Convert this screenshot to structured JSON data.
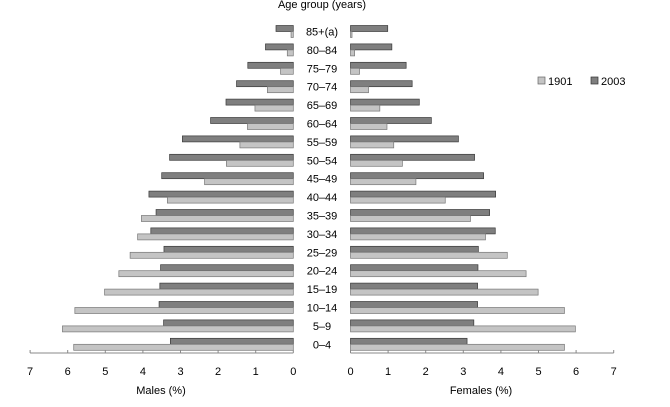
{
  "chart_data": {
    "type": "bar",
    "orientation": "horizontal",
    "layout": "population-pyramid",
    "title": "Age group (years)",
    "categories": [
      "85+(a)",
      "80–84",
      "75–79",
      "70–74",
      "65–69",
      "60–64",
      "55–59",
      "50–54",
      "45–49",
      "40–44",
      "35–39",
      "30–34",
      "25–29",
      "20–24",
      "15–19",
      "10–14",
      "5–9",
      "0–4"
    ],
    "left_panel": {
      "xlabel": "Males (%)",
      "xlim": [
        7,
        0
      ],
      "ticks": [
        "7",
        "6",
        "5",
        "4",
        "3",
        "2",
        "1",
        "0"
      ],
      "series": [
        {
          "name": "1901",
          "values": [
            0.06,
            0.16,
            0.34,
            0.69,
            1.02,
            1.22,
            1.42,
            1.78,
            2.36,
            3.35,
            4.04,
            4.14,
            4.34,
            4.64,
            5.02,
            5.81,
            6.14,
            5.84
          ]
        },
        {
          "name": "2003",
          "values": [
            0.46,
            0.74,
            1.21,
            1.51,
            1.79,
            2.2,
            2.95,
            3.29,
            3.5,
            3.84,
            3.65,
            3.79,
            3.44,
            3.53,
            3.55,
            3.57,
            3.45,
            3.27
          ]
        }
      ]
    },
    "right_panel": {
      "xlabel": "Females (%)",
      "xlim": [
        0,
        7
      ],
      "ticks": [
        "0",
        "1",
        "2",
        "3",
        "4",
        "5",
        "6",
        "7"
      ],
      "series": [
        {
          "name": "1901",
          "values": [
            0.04,
            0.11,
            0.24,
            0.48,
            0.78,
            0.97,
            1.15,
            1.38,
            1.74,
            2.52,
            3.19,
            3.59,
            4.17,
            4.67,
            4.99,
            5.69,
            5.98,
            5.69
          ]
        },
        {
          "name": "2003",
          "values": [
            0.99,
            1.1,
            1.48,
            1.64,
            1.83,
            2.15,
            2.87,
            3.3,
            3.54,
            3.86,
            3.7,
            3.85,
            3.4,
            3.39,
            3.38,
            3.38,
            3.28,
            3.1
          ]
        }
      ]
    },
    "legend": {
      "position": "right",
      "entries": [
        "1901",
        "2003"
      ]
    },
    "colors": {
      "1901": "#c4c4c4",
      "2003": "#7f7f7f",
      "outline": "#3a3a3a"
    },
    "grid": false
  }
}
